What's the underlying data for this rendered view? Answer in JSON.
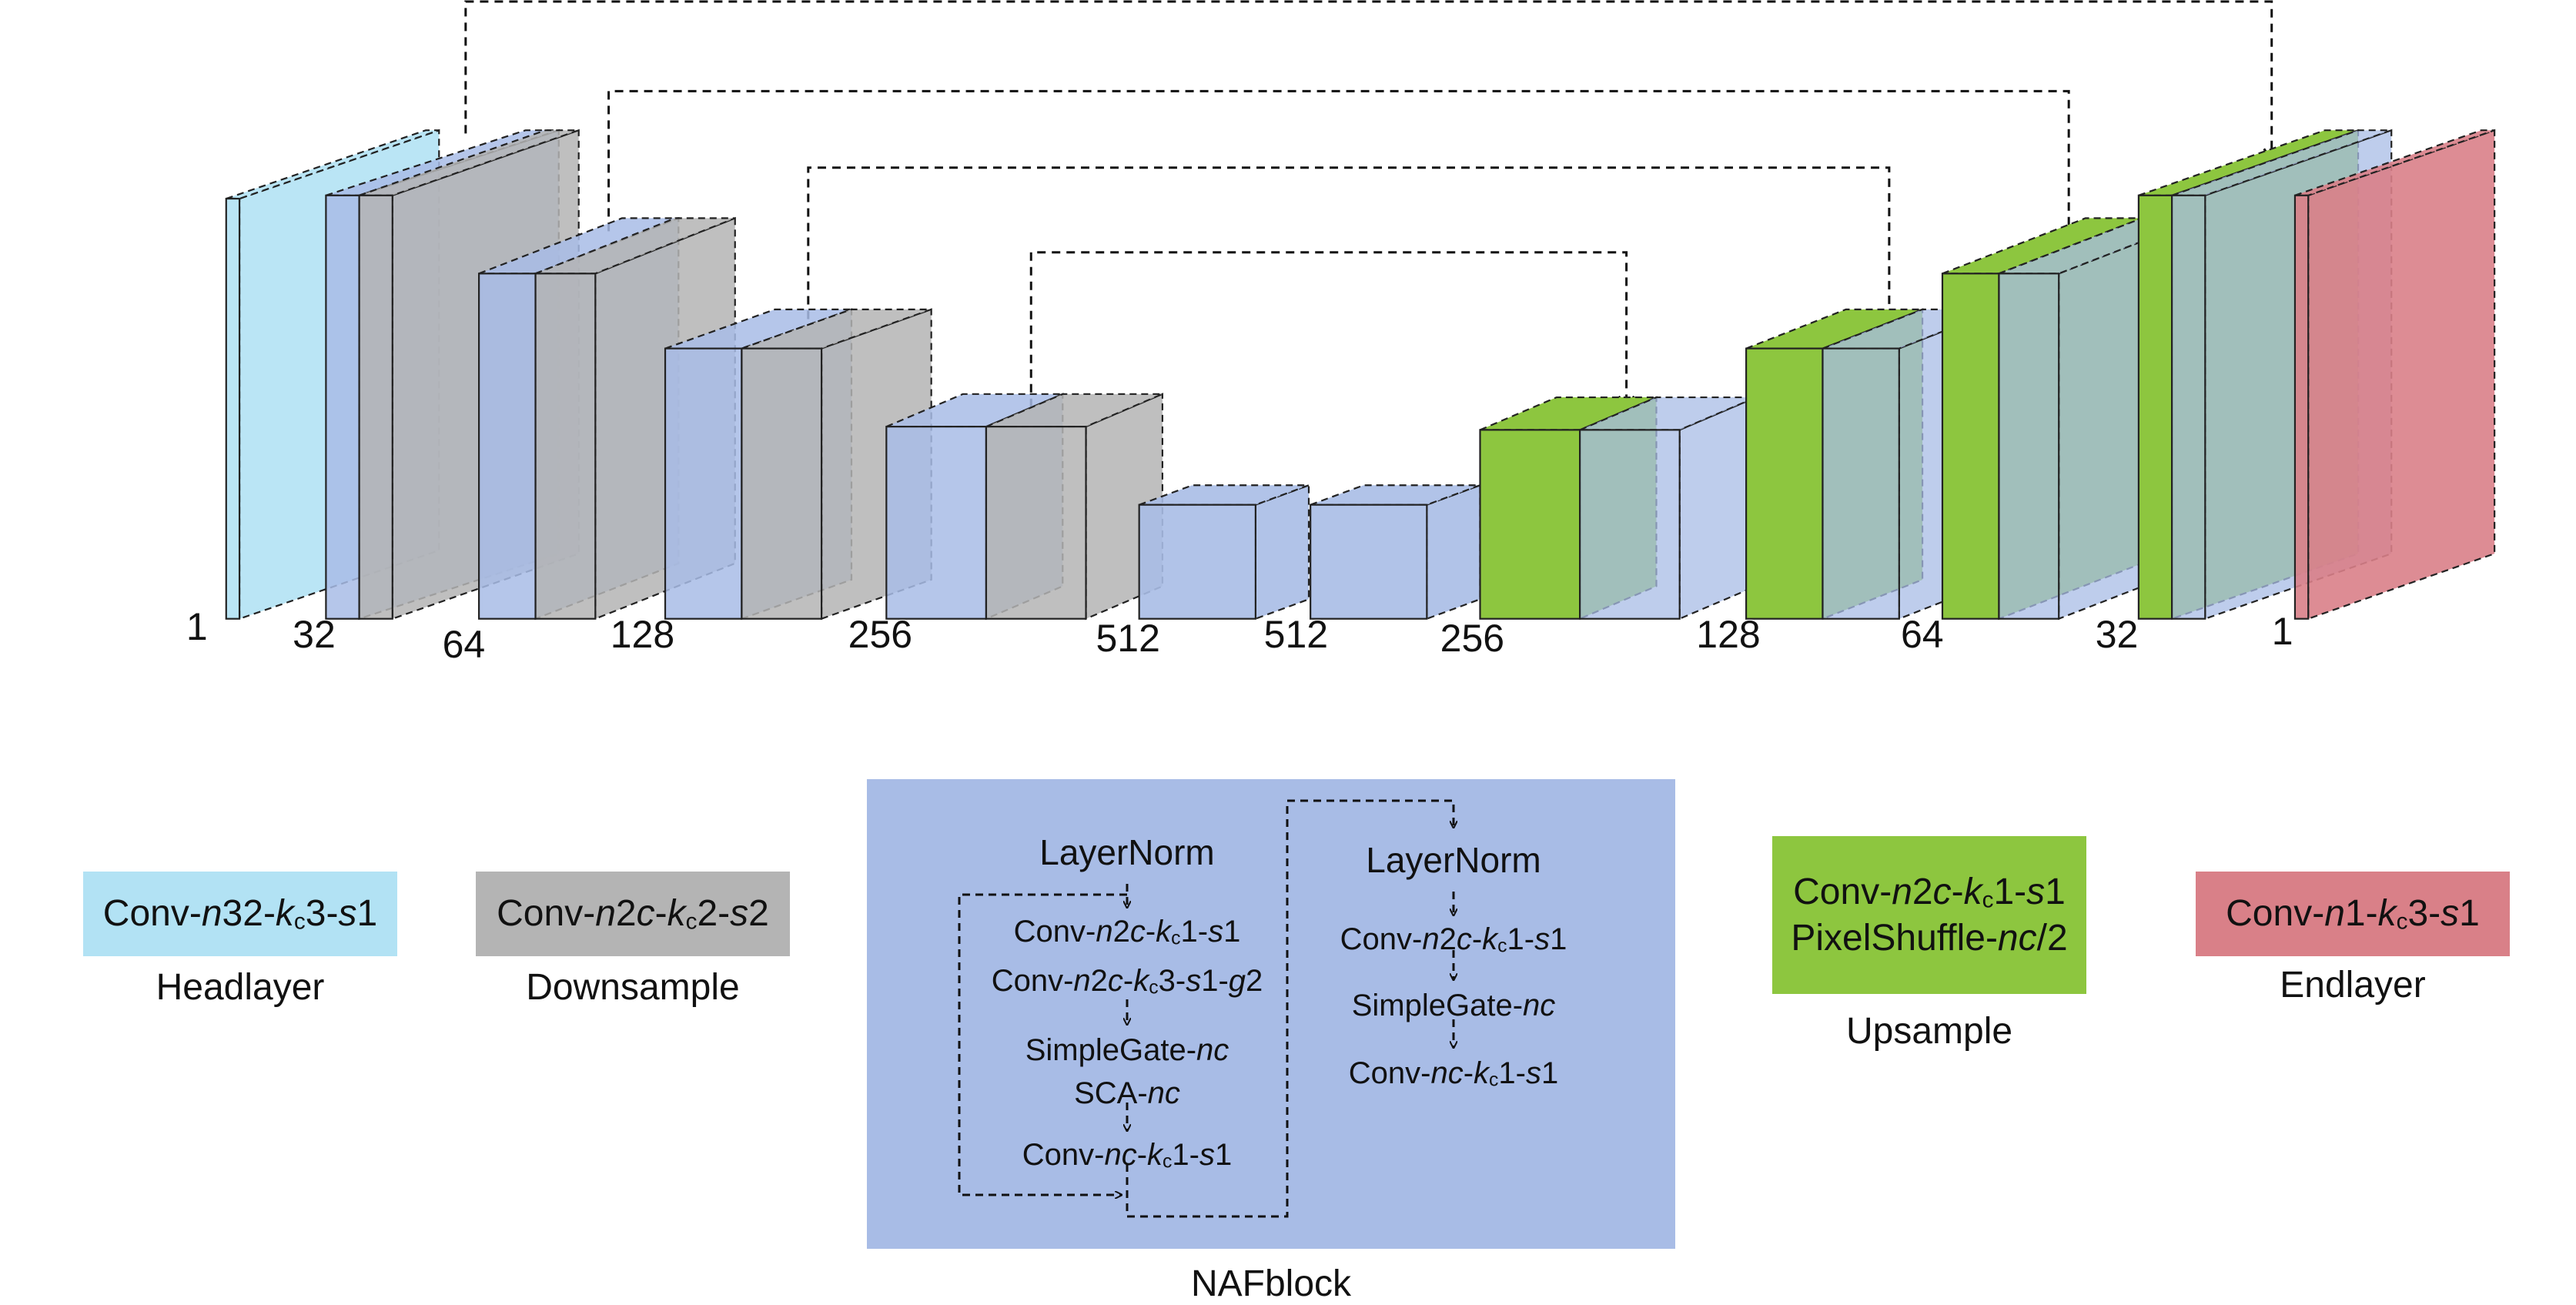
{
  "diagram": {
    "channel_labels": [
      "1",
      "32",
      "64",
      "128",
      "256",
      "512",
      "512",
      "256",
      "128",
      "64",
      "32",
      "1"
    ],
    "colors": {
      "headlayer": "#b2e2f4",
      "downsample": "#b4b4b4",
      "naf": "#a8bce6",
      "upsample": "#8dc63f",
      "endlayer": "#d98088"
    }
  },
  "legend": {
    "headlayer": {
      "op_prefix": "Conv-",
      "op_n": "n",
      "op_32": "32-",
      "op_k": "k",
      "op_c": "c",
      "op_rest": "3-",
      "op_s": "s",
      "op_1": "1",
      "caption": "Headlayer"
    },
    "downsample": {
      "caption": "Downsample"
    },
    "upsample": {
      "line2_prefix": "PixelShuffle-",
      "line2_nc": "nc",
      "line2_suffix": "/2",
      "caption": "Upsample"
    },
    "endlayer": {
      "caption": "Endlayer"
    },
    "nafblock": {
      "caption": "NAFblock",
      "left_title": "LayerNorm",
      "right_title": "LayerNorm"
    }
  }
}
